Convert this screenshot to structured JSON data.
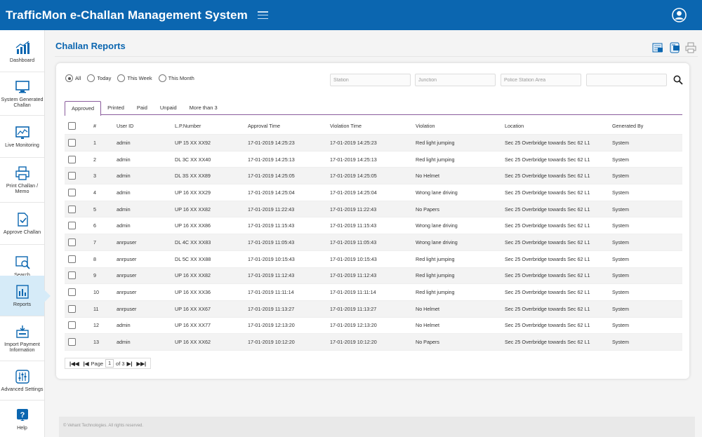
{
  "app": {
    "title": "TrafficMon e-Challan Management System"
  },
  "sidebar": {
    "items": [
      {
        "label": "Dashboard",
        "icon": "bar-chart-icon"
      },
      {
        "label": "System Generated Challan",
        "icon": "monitor-icon"
      },
      {
        "label": "Live Monitoring",
        "icon": "live-chart-icon"
      },
      {
        "label": "Print Challan / Memo",
        "icon": "printer-icon"
      },
      {
        "label": "Approve Challan",
        "icon": "approve-document-icon"
      },
      {
        "label": "Search",
        "icon": "search-screen-icon"
      },
      {
        "label": "Reports",
        "icon": "report-icon"
      },
      {
        "label": "Import Payment Information",
        "icon": "import-payment-icon"
      },
      {
        "label": "Advanced Settings",
        "icon": "sliders-icon"
      },
      {
        "label": "Help",
        "icon": "help-icon"
      }
    ],
    "active_index": 6
  },
  "page": {
    "title": "Challan Reports"
  },
  "filters": {
    "period": [
      {
        "label": "All",
        "checked": true
      },
      {
        "label": "Today",
        "checked": false
      },
      {
        "label": "This Week",
        "checked": false
      },
      {
        "label": "This Month",
        "checked": false
      }
    ],
    "station_placeholder": "Station",
    "junction_placeholder": "Junction",
    "police_area_placeholder": "Police Station Area",
    "extra_placeholder": ""
  },
  "tabs": [
    {
      "label": "Approved",
      "active": true
    },
    {
      "label": "Printed",
      "active": false
    },
    {
      "label": "Paid",
      "active": false
    },
    {
      "label": "Unpaid",
      "active": false
    },
    {
      "label": "More than 3",
      "active": false
    }
  ],
  "table": {
    "columns": [
      "#",
      "User ID",
      "L.P.Number",
      "Approval Time",
      "Violation Time",
      "Violation",
      "Location",
      "Generated By"
    ],
    "rows": [
      [
        "1",
        "admin",
        "UP 15 XX XX92",
        "17-01-2019  14:25:23",
        "17-01-2019  14:25:23",
        "Red light jumping",
        "Sec 25 Overbridge towards Sec 62 L1",
        "System"
      ],
      [
        "2",
        "admin",
        "DL 3C XX XX40",
        "17-01-2019  14:25:13",
        "17-01-2019  14:25:13",
        "Red light jumping",
        "Sec 25 Overbridge towards Sec 62 L1",
        "System"
      ],
      [
        "3",
        "admin",
        "DL 3S XX XX89",
        "17-01-2019  14:25:05",
        "17-01-2019  14:25:05",
        "No Helmet",
        "Sec 25 Overbridge towards Sec 62 L1",
        "System"
      ],
      [
        "4",
        "admin",
        "UP 16 XX XX29",
        "17-01-2019  14:25:04",
        "17-01-2019  14:25:04",
        "Wrong lane driving",
        "Sec 25 Overbridge towards Sec 62 L1",
        "System"
      ],
      [
        "5",
        "admin",
        "UP 16 XX XX82",
        "17-01-2019  11:22:43",
        "17-01-2019  11:22:43",
        "No Papers",
        "Sec 25 Overbridge towards Sec 62 L1",
        "System"
      ],
      [
        "6",
        "admin",
        "UP 16 XX XX86",
        "17-01-2019  11:15:43",
        "17-01-2019  11:15:43",
        "Wrong lane driving",
        "Sec 25 Overbridge towards Sec 62 L1",
        "System"
      ],
      [
        "7",
        "anrpuser",
        "DL 4C XX XX83",
        "17-01-2019  11:05:43",
        "17-01-2019  11:05:43",
        "Wrong lane driving",
        "Sec 25 Overbridge towards Sec 62 L1",
        "System"
      ],
      [
        "8",
        "anrpuser",
        "DL 5C XX XX88",
        "17-01-2019  10:15:43",
        "17-01-2019  10:15:43",
        "Red light jumping",
        "Sec 25 Overbridge towards Sec 62 L1",
        "System"
      ],
      [
        "9",
        "anrpuser",
        "UP 16 XX XX82",
        "17-01-2019  11:12:43",
        "17-01-2019  11:12:43",
        "Red light jumping",
        "Sec 25 Overbridge towards Sec 62 L1",
        "System"
      ],
      [
        "10",
        "anrpuser",
        "UP 16 XX XX36",
        "17-01-2019  11:11:14",
        "17-01-2019  11:11:14",
        "Red light jumping",
        "Sec 25 Overbridge towards Sec 62 L1",
        "System"
      ],
      [
        "11",
        "anrpuser",
        "UP 16 XX XX67",
        "17-01-2019  11:13:27",
        "17-01-2019  11:13:27",
        "No Helmet",
        "Sec 25 Overbridge towards Sec 62 L1",
        "System"
      ],
      [
        "12",
        "admin",
        "UP 16 XX XX77",
        "17-01-2019  12:13:20",
        "17-01-2019  12:13:20",
        "No Helmet",
        "Sec 25 Overbridge towards Sec 62 L1",
        "System"
      ],
      [
        "13",
        "admin",
        "UP 16 XX XX62",
        "17-01-2019  10:12:20",
        "17-01-2019  10:12:20",
        "No Papers",
        "Sec 25 Overbridge towards Sec 62 L1",
        "System"
      ]
    ]
  },
  "pager": {
    "page_label": "Page",
    "current": "1",
    "of_label": "of 3"
  },
  "footer": {
    "text": "© Vehant Technologies. All rights reserved."
  },
  "colors": {
    "header": "#0b66b0",
    "active_tab": "#8a5c9c",
    "active_nav": "#d6ebf8"
  }
}
